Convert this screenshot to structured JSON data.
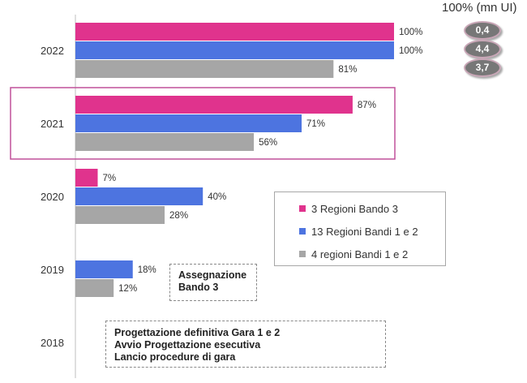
{
  "header": {
    "label": "100% (mn UI)",
    "pills": [
      "0,4",
      "4,4",
      "3,7"
    ]
  },
  "chart_data": {
    "type": "bar",
    "orientation": "horizontal",
    "categories": [
      "2022",
      "2021",
      "2020",
      "2019",
      "2018"
    ],
    "series": [
      {
        "name": "3 Regioni Bando 3",
        "color": "#e0338d",
        "values": [
          100,
          87,
          7,
          null,
          null
        ]
      },
      {
        "name": "13 Regioni Bandi 1 e 2",
        "color": "#4d74e0",
        "values": [
          100,
          71,
          40,
          18,
          null
        ]
      },
      {
        "name": "4 regioni Bandi 1 e 2",
        "color": "#a6a6a6",
        "values": [
          81,
          56,
          28,
          12,
          null
        ]
      }
    ],
    "value_labels": [
      [
        "100%",
        "87%",
        "7%",
        "",
        ""
      ],
      [
        "100%",
        "71%",
        "40%",
        "18%",
        ""
      ],
      [
        "81%",
        "56%",
        "28%",
        "12%",
        ""
      ]
    ],
    "xlim": [
      0,
      100
    ],
    "highlight_category": "2021",
    "highlight_color": "#c0509a",
    "legend_position": "right"
  },
  "notes": {
    "note1": [
      "Assegnazione",
      "Bando 3"
    ],
    "note2": [
      "Progettazione definitiva Gara 1 e 2",
      "Avvio Progettazione esecutiva",
      "Lancio procedure di gara"
    ]
  }
}
